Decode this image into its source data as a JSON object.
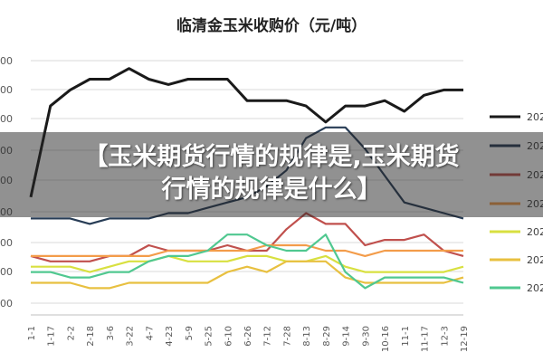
{
  "headline": {
    "line1": "【玉米期货行情的规律是,玉米期货",
    "line2": "行情的规律是什么】"
  },
  "chart_data": {
    "type": "line",
    "title": "临清金玉米收购价（元/吨）",
    "xlabel": "",
    "ylabel": "",
    "x_tick_labels": [
      "1-1",
      "1-17",
      "2-2",
      "2-18",
      "3-6",
      "3-22",
      "4-7",
      "4-23",
      "5-9",
      "5-25",
      "6-10",
      "6-26",
      "7-12",
      "7-28",
      "8-13",
      "8-29",
      "9-14",
      "9-30",
      "10-16",
      "11-1",
      "11-17",
      "12-3",
      "12-19"
    ],
    "y_tick_labels": [
      "00",
      "00",
      "00",
      "00",
      "00",
      "00",
      "00",
      "00",
      "00",
      "00"
    ],
    "grid": true,
    "legend_position": "right",
    "legend_labels": [
      "202",
      "202",
      "202",
      "202",
      "202",
      "202",
      "202"
    ],
    "series": [
      {
        "color": "#1a1a1a",
        "values": [
          52,
          69,
          72,
          74,
          74,
          76,
          74,
          73,
          74,
          74,
          74,
          70,
          70,
          70,
          69,
          66,
          69,
          69,
          70,
          68,
          71,
          72,
          72
        ]
      },
      {
        "color": "#283d56",
        "values": [
          48,
          48,
          48,
          47,
          48,
          48,
          48,
          49,
          49,
          50,
          51,
          52,
          54,
          57,
          63,
          65,
          65,
          61,
          56,
          51,
          50,
          49,
          48
        ]
      },
      {
        "color": "#c0504d",
        "values": [
          41,
          40,
          40,
          40,
          41,
          41,
          43,
          42,
          42,
          42,
          43,
          42,
          42,
          46,
          49,
          47,
          47,
          43,
          44,
          44,
          45,
          42,
          41
        ]
      },
      {
        "color": "#f39c4a",
        "values": [
          41,
          41,
          41,
          41,
          41,
          41,
          41,
          42,
          42,
          42,
          42,
          42,
          43,
          43,
          43,
          42,
          42,
          41,
          42,
          42,
          42,
          42,
          42
        ]
      },
      {
        "color": "#d8e040",
        "values": [
          39,
          39,
          39,
          38,
          39,
          40,
          40,
          41,
          40,
          40,
          40,
          41,
          41,
          40,
          40,
          41,
          39,
          38,
          38,
          38,
          38,
          38,
          39
        ]
      },
      {
        "color": "#e8c040",
        "values": [
          36,
          36,
          36,
          35,
          35,
          36,
          36,
          36,
          36,
          36,
          38,
          39,
          38,
          40,
          40,
          40,
          37,
          36,
          36,
          36,
          36,
          36,
          37
        ]
      },
      {
        "color": "#50c890",
        "values": [
          38,
          38,
          37,
          37,
          38,
          38,
          40,
          41,
          41,
          42,
          45,
          45,
          43,
          42,
          42,
          45,
          38,
          35,
          37,
          37,
          37,
          37,
          36
        ]
      }
    ]
  }
}
